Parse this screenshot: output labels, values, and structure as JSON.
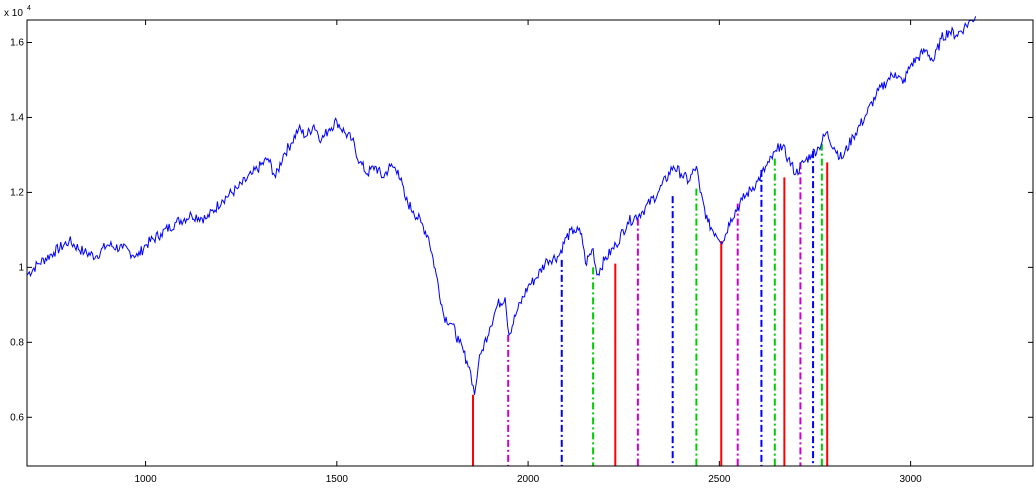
{
  "chart_data": {
    "type": "line",
    "title": "",
    "xlabel": "",
    "ylabel": "",
    "y_exponent_label": "x 10",
    "y_exponent_power": "4",
    "xlim": [
      690,
      3320
    ],
    "ylim": [
      0.47,
      1.66
    ],
    "x_ticks": [
      1000,
      1500,
      2000,
      2500,
      3000
    ],
    "x_tick_labels": [
      "1000",
      "1500",
      "2000",
      "2500",
      "3000"
    ],
    "y_ticks": [
      0.6,
      0.8,
      1.0,
      1.2,
      1.4,
      1.6
    ],
    "y_tick_labels": [
      "0.6",
      "0.8",
      "1",
      "1.2",
      "1.4",
      "1.6"
    ],
    "grid": false,
    "series": [
      {
        "color": "#0000ff",
        "style": "solid",
        "x": [
          690,
          720,
          760,
          800,
          840,
          870,
          900,
          940,
          980,
          1000,
          1040,
          1080,
          1120,
          1160,
          1200,
          1240,
          1280,
          1320,
          1340,
          1360,
          1380,
          1400,
          1420,
          1440,
          1460,
          1480,
          1500,
          1520,
          1540,
          1560,
          1580,
          1600,
          1620,
          1640,
          1660,
          1680,
          1700,
          1720,
          1740,
          1760,
          1780,
          1800,
          1820,
          1840,
          1850,
          1860,
          1870,
          1880,
          1900,
          1920,
          1940,
          1950,
          1970,
          2000,
          2020,
          2050,
          2080,
          2100,
          2120,
          2140,
          2150,
          2170,
          2180,
          2200,
          2230,
          2260,
          2300,
          2340,
          2380,
          2400,
          2420,
          2440,
          2450,
          2470,
          2490,
          2510,
          2530,
          2560,
          2600,
          2630,
          2650,
          2660,
          2680,
          2700,
          2720,
          2740,
          2760,
          2780,
          2800,
          2820,
          2850,
          2880,
          2910,
          2940,
          2960,
          2980,
          3000,
          3020,
          3040,
          3060,
          3080,
          3100,
          3120,
          3140,
          3160,
          3170
        ],
        "y": [
          0.98,
          1.01,
          1.04,
          1.07,
          1.04,
          1.03,
          1.06,
          1.05,
          1.03,
          1.06,
          1.09,
          1.12,
          1.14,
          1.13,
          1.18,
          1.21,
          1.25,
          1.29,
          1.24,
          1.3,
          1.33,
          1.37,
          1.35,
          1.38,
          1.34,
          1.37,
          1.39,
          1.36,
          1.34,
          1.28,
          1.25,
          1.27,
          1.24,
          1.27,
          1.26,
          1.18,
          1.15,
          1.12,
          1.08,
          0.98,
          0.87,
          0.85,
          0.8,
          0.75,
          0.72,
          0.66,
          0.74,
          0.78,
          0.84,
          0.9,
          0.92,
          0.82,
          0.88,
          0.95,
          0.97,
          1.02,
          1.03,
          1.08,
          1.1,
          1.09,
          1.01,
          1.05,
          0.98,
          1.02,
          1.06,
          1.12,
          1.15,
          1.2,
          1.27,
          1.25,
          1.23,
          1.27,
          1.2,
          1.12,
          1.09,
          1.07,
          1.13,
          1.18,
          1.23,
          1.28,
          1.31,
          1.33,
          1.29,
          1.25,
          1.28,
          1.3,
          1.32,
          1.36,
          1.32,
          1.29,
          1.35,
          1.4,
          1.46,
          1.5,
          1.52,
          1.49,
          1.54,
          1.56,
          1.58,
          1.55,
          1.61,
          1.63,
          1.62,
          1.64,
          1.66,
          1.67
        ]
      }
    ],
    "vlines": [
      {
        "x": 1856,
        "y_top": 0.66,
        "color": "#ff0000",
        "style": "solid"
      },
      {
        "x": 1948,
        "y_top": 0.82,
        "color": "#cc00cc",
        "style": "dashdot"
      },
      {
        "x": 2088,
        "y_top": 1.02,
        "color": "#0000ff",
        "style": "dashdot"
      },
      {
        "x": 2170,
        "y_top": 1.0,
        "color": "#00cc00",
        "style": "dashdot"
      },
      {
        "x": 2228,
        "y_top": 1.01,
        "color": "#ff0000",
        "style": "solid"
      },
      {
        "x": 2287,
        "y_top": 1.13,
        "color": "#cc00cc",
        "style": "dashdot"
      },
      {
        "x": 2378,
        "y_top": 1.19,
        "color": "#0000ff",
        "style": "dashdot"
      },
      {
        "x": 2440,
        "y_top": 1.21,
        "color": "#00cc00",
        "style": "dashdot"
      },
      {
        "x": 2505,
        "y_top": 1.07,
        "color": "#ff0000",
        "style": "solid"
      },
      {
        "x": 2548,
        "y_top": 1.17,
        "color": "#cc00cc",
        "style": "dashdot"
      },
      {
        "x": 2610,
        "y_top": 1.26,
        "color": "#0000ff",
        "style": "dashdot"
      },
      {
        "x": 2645,
        "y_top": 1.29,
        "color": "#00cc00",
        "style": "dashdot"
      },
      {
        "x": 2670,
        "y_top": 1.24,
        "color": "#ff0000",
        "style": "solid"
      },
      {
        "x": 2712,
        "y_top": 1.28,
        "color": "#cc00cc",
        "style": "dashdot"
      },
      {
        "x": 2745,
        "y_top": 1.31,
        "color": "#0000ff",
        "style": "dashdot"
      },
      {
        "x": 2768,
        "y_top": 1.33,
        "color": "#00cc00",
        "style": "dashdot"
      },
      {
        "x": 2782,
        "y_top": 1.28,
        "color": "#ff0000",
        "style": "solid"
      }
    ]
  }
}
